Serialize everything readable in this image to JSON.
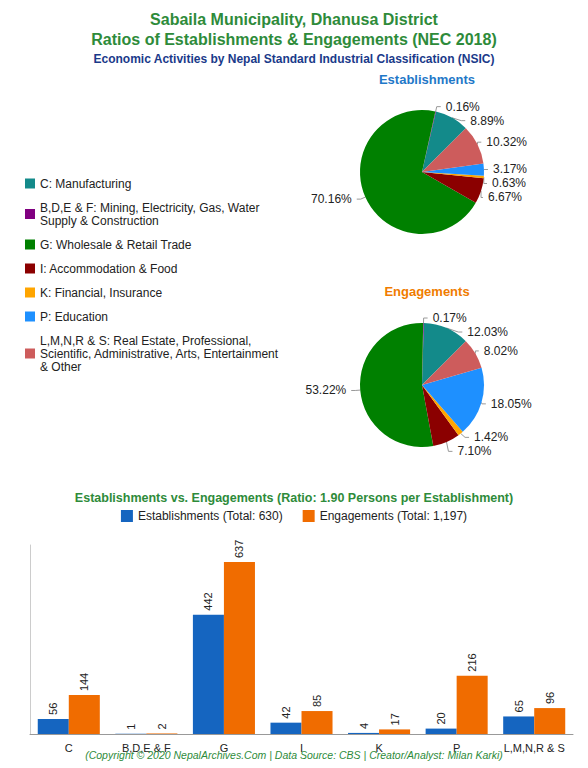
{
  "page": {
    "title": [
      "Sabaila Municipality, Dhanusa District",
      "Ratios of Establishments & Engagements (NEC 2018)"
    ],
    "subtitle": "Economic Activities by Nepal Standard Industrial Classification (NSIC)",
    "footer": "(Copyright © 2020 NepalArchives.Com | Data Source: CBS | Creator/Analyst: Milan Karki)"
  },
  "chart_data": [
    {
      "type": "pie",
      "title": "Establishments",
      "categories": [
        "C: Manufacturing",
        "B,D,E & F: Mining, Electricity, Gas, Water Supply & Construction",
        "G: Wholesale & Retail Trade",
        "I: Accommodation & Food",
        "K: Financial, Insurance",
        "P: Education",
        "L,M,N,R & S: Real Estate, Professional, Scientific, Administrative, Arts, Entertainment & Other"
      ],
      "values": [
        8.89,
        0.16,
        70.16,
        6.67,
        0.63,
        3.17,
        10.32
      ],
      "value_labels": [
        "8.89%",
        "0.16%",
        "70.16%",
        "6.67%",
        "0.63%",
        "3.17%",
        "10.32%"
      ],
      "colors": [
        "#138a8a",
        "#800080",
        "#008000",
        "#8b0000",
        "#ffa500",
        "#1e90ff",
        "#cd5c5c"
      ],
      "data_labels": true,
      "legend": "left"
    },
    {
      "type": "pie",
      "title": "Engagements",
      "categories": [
        "C: Manufacturing",
        "B,D,E & F: Mining, Electricity, Gas, Water Supply & Construction",
        "G: Wholesale & Retail Trade",
        "I: Accommodation & Food",
        "K: Financial, Insurance",
        "P: Education",
        "L,M,N,R & S: Real Estate, Professional, Scientific, Administrative, Arts, Entertainment & Other"
      ],
      "values": [
        12.03,
        0.17,
        53.22,
        7.1,
        1.42,
        18.05,
        8.02
      ],
      "value_labels": [
        "12.03%",
        "0.17%",
        "53.22%",
        "7.10%",
        "1.42%",
        "18.05%",
        "8.02%"
      ],
      "colors": [
        "#138a8a",
        "#800080",
        "#008000",
        "#8b0000",
        "#ffa500",
        "#1e90ff",
        "#cd5c5c"
      ],
      "data_labels": true,
      "legend": "left"
    },
    {
      "type": "bar",
      "title": "Establishments vs. Engagements (Ratio: 1.90 Persons per Establishment)",
      "categories": [
        "C",
        "B,D,E & F",
        "G",
        "I",
        "K",
        "P",
        "L,M,N,R & S"
      ],
      "series": [
        {
          "name": "Establishments (Total: 630)",
          "color": "#1565c0",
          "values": [
            56,
            1,
            442,
            42,
            4,
            20,
            65
          ]
        },
        {
          "name": "Engagements (Total: 1,197)",
          "color": "#f06c00",
          "values": [
            144,
            2,
            637,
            85,
            17,
            216,
            96
          ]
        }
      ],
      "ylim": [
        0,
        700
      ],
      "grid": false,
      "data_labels": true,
      "tick_labels": "x",
      "legend": "top"
    }
  ]
}
